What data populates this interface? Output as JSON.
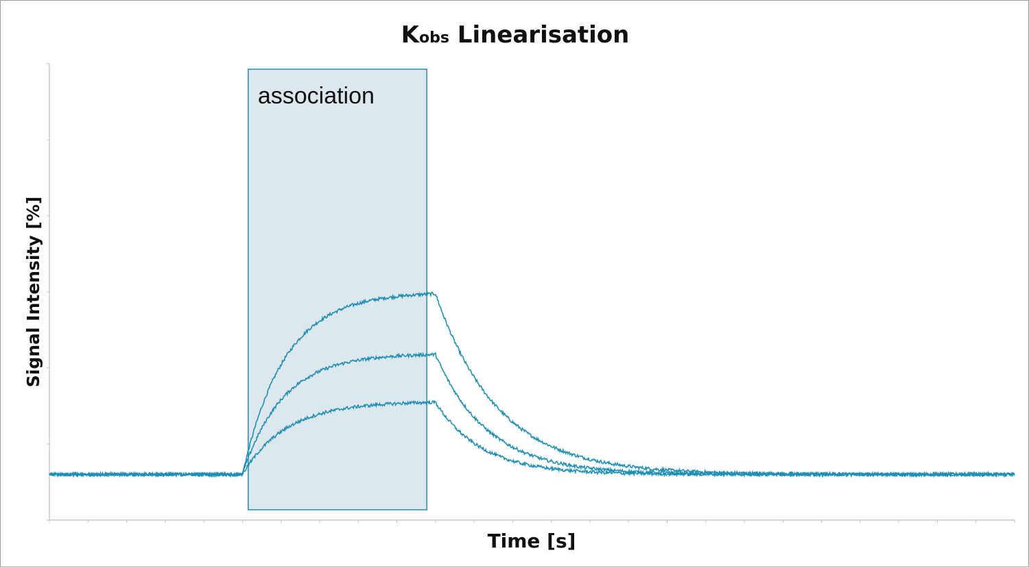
{
  "chart_data": {
    "type": "line",
    "title": {
      "main": "K",
      "subscript": "obs",
      "rest": " Linearisation"
    },
    "xlabel": "Time [s]",
    "ylabel": "Signal Intensity [%]",
    "tick_labels_shown": false,
    "grid": false,
    "legend": "none",
    "line_color": "#1f8fb5",
    "xlim": [
      0,
      100
    ],
    "ylim": [
      -10,
      90
    ],
    "x_ticks_count": 25,
    "y_ticks_count": 6,
    "annotation": {
      "label": "association",
      "x_start": 20.6,
      "x_end": 39.1,
      "fill": "#dce7ee",
      "stroke": "#1f8fb5"
    },
    "series": [
      {
        "plateau": 40,
        "kon_rate": 0.23,
        "koff_rate": 0.155
      },
      {
        "plateau": 26.5,
        "kon_rate": 0.24,
        "koff_rate": 0.185
      },
      {
        "plateau": 16,
        "kon_rate": 0.22,
        "koff_rate": 0.21
      }
    ],
    "injection_start": 20.0,
    "dissociation_start": 40.0,
    "baseline": 0,
    "noise_amplitude": 0.35
  }
}
